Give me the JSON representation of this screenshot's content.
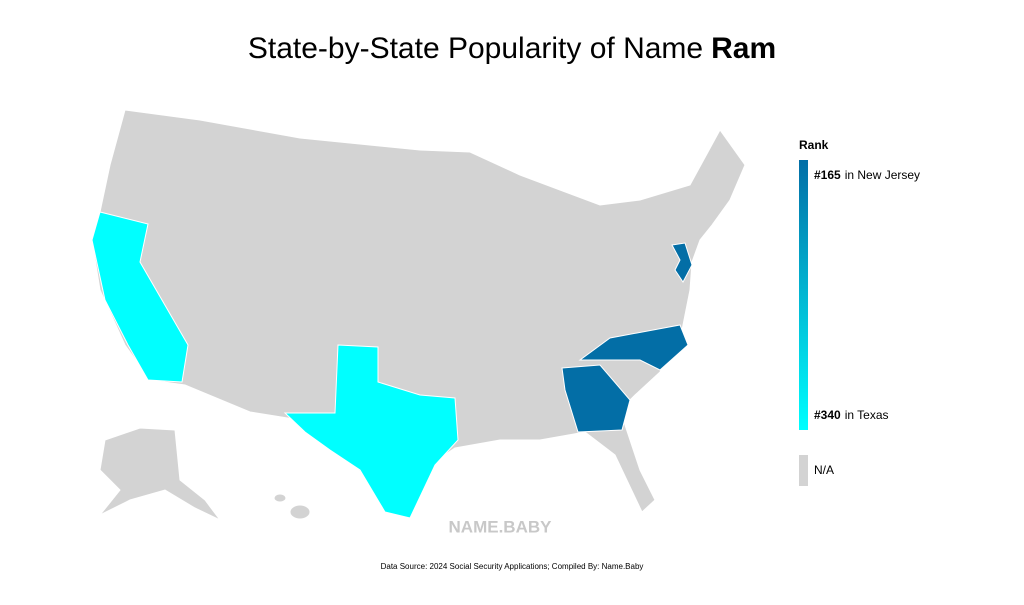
{
  "title": {
    "text": "State-by-State Popularity of Name",
    "name": "Ram"
  },
  "legend": {
    "heading": "Rank",
    "top": {
      "rank": "#165",
      "label": "in New Jersey"
    },
    "bottom": {
      "rank": "#340",
      "label": "in Texas"
    },
    "na": "N/A"
  },
  "watermark": "NAME.BABY",
  "source": "Data Source: 2024 Social Security Applications; Compiled By: Name.Baby"
}
